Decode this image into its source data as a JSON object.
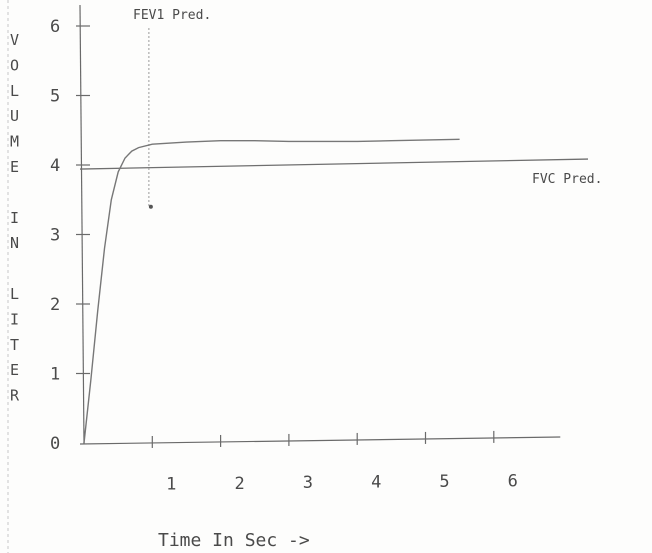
{
  "chart_data": {
    "type": "line",
    "title": "",
    "ylabel": "VOLUME IN LITER",
    "ylabel_letters": [
      "V",
      "O",
      "L",
      "U",
      "M",
      "E",
      "",
      "I",
      "N",
      "",
      "L",
      "I",
      "T",
      "E",
      "R"
    ],
    "xlabel": "Time In Sec ->",
    "xlim": [
      0,
      6.9
    ],
    "ylim": [
      0,
      6
    ],
    "y_ticks": [
      "0",
      "1",
      "2",
      "3",
      "4",
      "5",
      "6"
    ],
    "x_ticks": [
      "1",
      "2",
      "3",
      "4",
      "5",
      "6"
    ],
    "grid": false,
    "series": [
      {
        "x": [
          0,
          0.1,
          0.2,
          0.3,
          0.4,
          0.5,
          0.6,
          0.7,
          0.8,
          1.0,
          1.5,
          2.0,
          2.5,
          3.0,
          3.5,
          4.0,
          4.5,
          5.5
        ],
        "values": [
          0,
          0.9,
          1.9,
          2.8,
          3.5,
          3.9,
          4.1,
          4.2,
          4.25,
          4.3,
          4.33,
          4.35,
          4.35,
          4.34,
          4.34,
          4.34,
          4.35,
          4.37
        ]
      }
    ],
    "reference_lines": [
      {
        "label": "FVC Pred.",
        "orientation": "horizontal",
        "value": 3.97
      },
      {
        "label": "FEV1 Pred.",
        "orientation": "vertical",
        "value": 0.95,
        "marker_y": 3.4
      }
    ]
  }
}
